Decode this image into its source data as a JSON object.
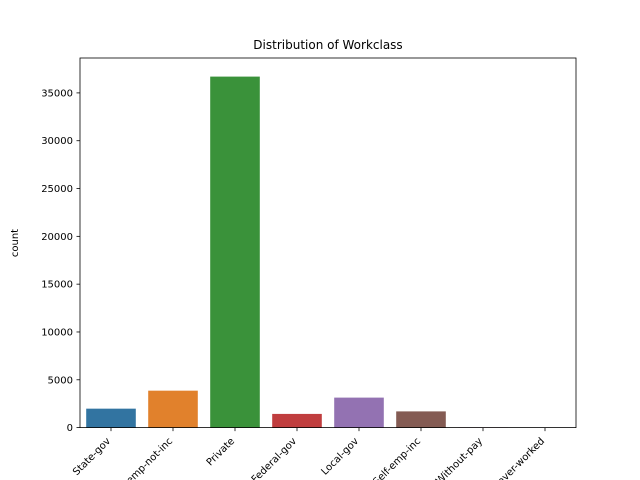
{
  "chart_data": {
    "type": "bar",
    "title": "Distribution of Workclass",
    "xlabel": "",
    "ylabel": "count",
    "categories": [
      "State-gov",
      "Self-emp-not-inc",
      "Private",
      "Federal-gov",
      "Local-gov",
      "Self-emp-inc",
      "Without-pay",
      "Never-worked"
    ],
    "values": [
      1981,
      3862,
      36705,
      1432,
      3136,
      1695,
      21,
      10
    ],
    "colors": [
      "#3274a1",
      "#e1812c",
      "#3a923a",
      "#c03d3e",
      "#9372b2",
      "#845b53",
      "#d684bd",
      "#7f7f7f"
    ],
    "ylim": [
      0,
      38650
    ],
    "yticks": [
      0,
      5000,
      10000,
      15000,
      20000,
      25000,
      30000,
      35000
    ],
    "xtick_rotation": 45,
    "grid": false
  }
}
